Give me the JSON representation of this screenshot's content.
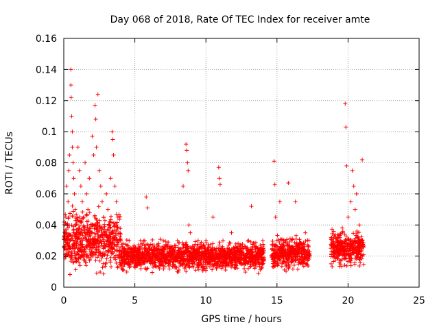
{
  "chart_data": {
    "type": "scatter",
    "title": "Day 068 of 2018, Rate Of TEC Index for receiver amte",
    "xlabel": "GPS time / hours",
    "ylabel": "ROTI / TECUs",
    "xlim": [
      0,
      25
    ],
    "ylim": [
      0,
      0.16
    ],
    "x_ticks": [
      0,
      5,
      10,
      15,
      20,
      25
    ],
    "y_ticks": [
      0,
      0.02,
      0.04,
      0.06,
      0.08,
      0.1,
      0.12,
      0.14,
      0.16
    ],
    "x_tick_labels": [
      "0",
      "5",
      "10",
      "15",
      "20",
      "25"
    ],
    "y_tick_labels": [
      "0",
      "0.02",
      "0.04",
      "0.06",
      "0.08",
      "0.1",
      "0.12",
      "0.14",
      "0.16"
    ],
    "grid": true,
    "marker": "+",
    "marker_color": "#ff0000",
    "series": [
      {
        "name": "ROTI",
        "points": [
          [
            0.1,
            0.02
          ],
          [
            0.15,
            0.045
          ],
          [
            0.2,
            0.065
          ],
          [
            0.25,
            0.03
          ],
          [
            0.3,
            0.055
          ],
          [
            0.35,
            0.075
          ],
          [
            0.4,
            0.085
          ],
          [
            0.45,
            0.025
          ],
          [
            0.5,
            0.14
          ],
          [
            0.5,
            0.13
          ],
          [
            0.52,
            0.122
          ],
          [
            0.55,
            0.11
          ],
          [
            0.6,
            0.1
          ],
          [
            0.6,
            0.09
          ],
          [
            0.65,
            0.08
          ],
          [
            0.7,
            0.07
          ],
          [
            0.75,
            0.06
          ],
          [
            0.8,
            0.05
          ],
          [
            0.85,
            0.04
          ],
          [
            0.9,
            0.035
          ],
          [
            1.0,
            0.09
          ],
          [
            1.1,
            0.075
          ],
          [
            1.2,
            0.065
          ],
          [
            1.3,
            0.055
          ],
          [
            1.4,
            0.045
          ],
          [
            1.5,
            0.08
          ],
          [
            1.6,
            0.06
          ],
          [
            1.7,
            0.05
          ],
          [
            1.8,
            0.07
          ],
          [
            1.9,
            0.04
          ],
          [
            2.0,
            0.097
          ],
          [
            2.1,
            0.085
          ],
          [
            2.2,
            0.117
          ],
          [
            2.25,
            0.108
          ],
          [
            2.3,
            0.09
          ],
          [
            2.4,
            0.124
          ],
          [
            2.5,
            0.075
          ],
          [
            2.6,
            0.065
          ],
          [
            2.7,
            0.055
          ],
          [
            2.8,
            0.045
          ],
          [
            2.9,
            0.035
          ],
          [
            3.0,
            0.06
          ],
          [
            3.1,
            0.05
          ],
          [
            3.2,
            0.04
          ],
          [
            3.3,
            0.07
          ],
          [
            3.4,
            0.1
          ],
          [
            3.45,
            0.095
          ],
          [
            3.5,
            0.085
          ],
          [
            3.6,
            0.065
          ],
          [
            3.7,
            0.055
          ],
          [
            3.8,
            0.045
          ],
          [
            4.0,
            0.03
          ],
          [
            4.2,
            0.025
          ],
          [
            4.4,
            0.02
          ],
          [
            4.6,
            0.03
          ],
          [
            4.8,
            0.02
          ],
          [
            5.0,
            0.025
          ],
          [
            5.2,
            0.015
          ],
          [
            5.4,
            0.03
          ],
          [
            5.6,
            0.02
          ],
          [
            5.8,
            0.058
          ],
          [
            5.9,
            0.051
          ],
          [
            6.0,
            0.025
          ],
          [
            6.5,
            0.02
          ],
          [
            7.0,
            0.03
          ],
          [
            7.5,
            0.025
          ],
          [
            8.0,
            0.03
          ],
          [
            8.4,
            0.065
          ],
          [
            8.6,
            0.092
          ],
          [
            8.65,
            0.088
          ],
          [
            8.7,
            0.08
          ],
          [
            8.75,
            0.075
          ],
          [
            8.8,
            0.04
          ],
          [
            8.9,
            0.035
          ],
          [
            9.0,
            0.025
          ],
          [
            9.5,
            0.02
          ],
          [
            10.0,
            0.03
          ],
          [
            10.5,
            0.045
          ],
          [
            10.9,
            0.077
          ],
          [
            10.95,
            0.07
          ],
          [
            11.0,
            0.066
          ],
          [
            11.2,
            0.03
          ],
          [
            11.5,
            0.025
          ],
          [
            11.8,
            0.035
          ],
          [
            12.0,
            0.02
          ],
          [
            12.5,
            0.025
          ],
          [
            12.8,
            0.02
          ],
          [
            13.0,
            0.03
          ],
          [
            13.2,
            0.052
          ],
          [
            13.4,
            0.015
          ],
          [
            13.6,
            0.025
          ],
          [
            13.8,
            0.02
          ],
          [
            14.0,
            0.03
          ],
          [
            14.8,
            0.081
          ],
          [
            14.85,
            0.066
          ],
          [
            14.9,
            0.045
          ],
          [
            15.0,
            0.03
          ],
          [
            15.2,
            0.055
          ],
          [
            15.4,
            0.025
          ],
          [
            15.6,
            0.02
          ],
          [
            15.8,
            0.067
          ],
          [
            16.0,
            0.03
          ],
          [
            16.3,
            0.055
          ],
          [
            16.5,
            0.025
          ],
          [
            16.8,
            0.02
          ],
          [
            17.0,
            0.035
          ],
          [
            17.2,
            0.02
          ],
          [
            18.8,
            0.025
          ],
          [
            19.0,
            0.02
          ],
          [
            19.3,
            0.03
          ],
          [
            19.6,
            0.035
          ],
          [
            19.8,
            0.118
          ],
          [
            19.85,
            0.103
          ],
          [
            19.9,
            0.078
          ],
          [
            20.0,
            0.045
          ],
          [
            20.2,
            0.055
          ],
          [
            20.3,
            0.075
          ],
          [
            20.4,
            0.065
          ],
          [
            20.5,
            0.05
          ],
          [
            20.6,
            0.06
          ],
          [
            20.8,
            0.04
          ],
          [
            21.0,
            0.082
          ],
          [
            21.0,
            0.03
          ]
        ],
        "dense_bands": [
          {
            "x": [
              0.0,
              4.0
            ],
            "y_center": 0.03,
            "y_spread": 0.025
          },
          {
            "x": [
              4.0,
              12.3
            ],
            "y_center": 0.02,
            "y_spread": 0.012
          },
          {
            "x": [
              12.3,
              14.1
            ],
            "y_center": 0.02,
            "y_spread": 0.012
          },
          {
            "x": [
              14.6,
              17.3
            ],
            "y_center": 0.022,
            "y_spread": 0.013
          },
          {
            "x": [
              18.8,
              21.1
            ],
            "y_center": 0.025,
            "y_spread": 0.015
          }
        ]
      }
    ]
  }
}
